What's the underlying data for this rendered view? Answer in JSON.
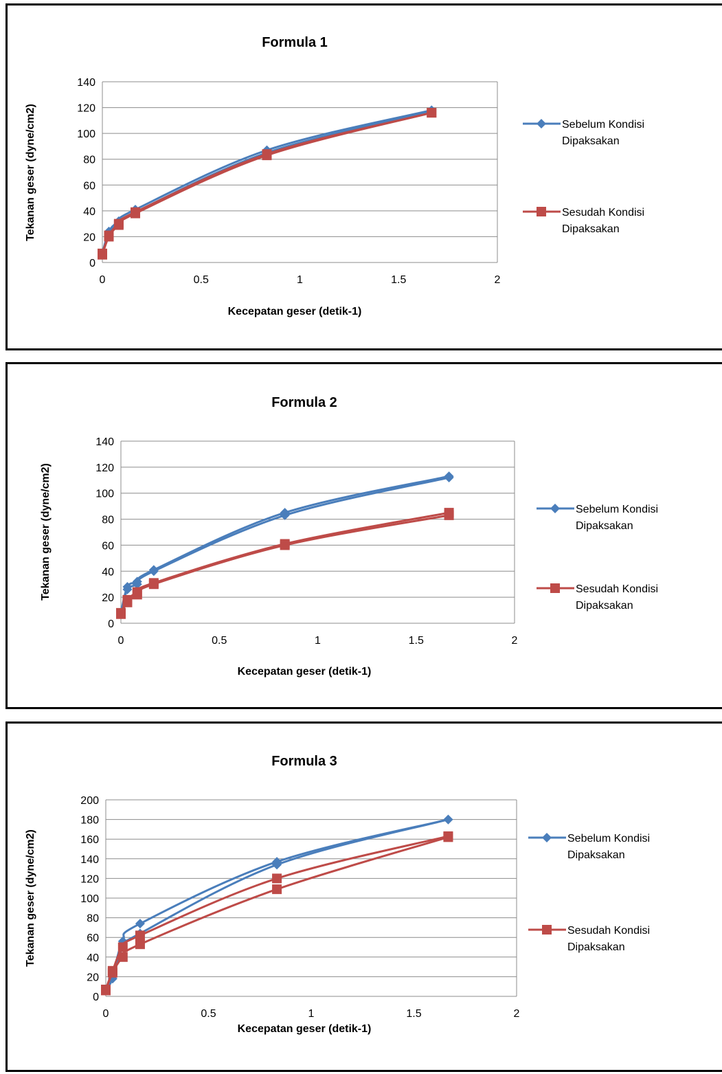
{
  "chart_data": [
    {
      "type": "line",
      "title": "Formula 1",
      "xlabel": "Kecepatan geser (detik-1)",
      "ylabel": "Tekanan geser (dyne/cm2)",
      "xlim": [
        0,
        2
      ],
      "ylim": [
        0,
        140
      ],
      "xticks": [
        "0",
        "0.5",
        "1",
        "1.5",
        "2"
      ],
      "yticks": [
        "0",
        "20",
        "40",
        "60",
        "80",
        "100",
        "120",
        "140"
      ],
      "grid": true,
      "legend_position": "right",
      "series": [
        {
          "name": "Sebelum Kondisi Dipaksakan",
          "color": "#4a7ebb",
          "marker": "diamond",
          "up": [
            [
              0.0,
              7
            ],
            [
              0.033,
              24
            ],
            [
              0.083,
              32
            ],
            [
              0.167,
              41
            ],
            [
              0.833,
              87
            ],
            [
              1.667,
              118
            ]
          ],
          "down": [
            [
              1.667,
              117
            ],
            [
              0.833,
              85
            ],
            [
              0.167,
              39
            ],
            [
              0.083,
              30
            ],
            [
              0.033,
              22
            ],
            [
              0.0,
              7
            ]
          ]
        },
        {
          "name": "Sesudah Kondisi Dipaksakan",
          "color": "#be4b48",
          "marker": "square",
          "up": [
            [
              0.0,
              7
            ],
            [
              0.033,
              21
            ],
            [
              0.083,
              30
            ],
            [
              0.167,
              39
            ],
            [
              0.833,
              84
            ],
            [
              1.667,
              116
            ]
          ],
          "down": [
            [
              1.667,
              116
            ],
            [
              0.833,
              83
            ],
            [
              0.167,
              38
            ],
            [
              0.083,
              29
            ],
            [
              0.033,
              20
            ],
            [
              0.0,
              6
            ]
          ]
        }
      ]
    },
    {
      "type": "line",
      "title": "Formula 2",
      "xlabel": "Kecepatan geser (detik-1)",
      "ylabel": "Tekanan geser (dyne/cm2)",
      "xlim": [
        0,
        2
      ],
      "ylim": [
        0,
        140
      ],
      "xticks": [
        "0",
        "0.5",
        "1",
        "1.5",
        "2"
      ],
      "yticks": [
        "0",
        "20",
        "40",
        "60",
        "80",
        "100",
        "120",
        "140"
      ],
      "grid": true,
      "legend_position": "right",
      "series": [
        {
          "name": "Sebelum Kondisi Dipaksakan",
          "color": "#4a7ebb",
          "marker": "diamond",
          "up": [
            [
              0.0,
              8
            ],
            [
              0.033,
              28
            ],
            [
              0.083,
              32
            ],
            [
              0.167,
              41
            ],
            [
              0.833,
              85
            ],
            [
              1.667,
              113
            ]
          ],
          "down": [
            [
              1.667,
              112
            ],
            [
              0.833,
              83
            ],
            [
              0.167,
              40
            ],
            [
              0.083,
              30
            ],
            [
              0.033,
              26
            ],
            [
              0.0,
              8
            ]
          ]
        },
        {
          "name": "Sesudah Kondisi Dipaksakan",
          "color": "#be4b48",
          "marker": "square",
          "up": [
            [
              0.0,
              8
            ],
            [
              0.033,
              18
            ],
            [
              0.083,
              24
            ],
            [
              0.167,
              31
            ],
            [
              0.833,
              61
            ],
            [
              1.667,
              85
            ]
          ],
          "down": [
            [
              1.667,
              83
            ],
            [
              0.833,
              60
            ],
            [
              0.167,
              30
            ],
            [
              0.083,
              22
            ],
            [
              0.033,
              16
            ],
            [
              0.0,
              7
            ]
          ]
        }
      ]
    },
    {
      "type": "line",
      "title": "Formula 3",
      "xlabel": "Kecepatan geser (detik-1)",
      "ylabel": "Tekanan geser (dyne/cm2)",
      "xlim": [
        0,
        2
      ],
      "ylim": [
        0,
        200
      ],
      "xticks": [
        "0",
        "0.5",
        "1",
        "1.5",
        "2"
      ],
      "yticks": [
        "0",
        "20",
        "40",
        "60",
        "80",
        "100",
        "120",
        "140",
        "160",
        "180",
        "200"
      ],
      "grid": true,
      "legend_position": "right",
      "series": [
        {
          "name": "Sebelum Kondisi Dipaksakan",
          "color": "#4a7ebb",
          "marker": "diamond",
          "up": [
            [
              0.0,
              7
            ],
            [
              0.033,
              22
            ],
            [
              0.083,
              56
            ],
            [
              0.167,
              74
            ],
            [
              0.833,
              137
            ],
            [
              1.667,
              180
            ]
          ],
          "down": [
            [
              1.667,
              180
            ],
            [
              0.833,
              134
            ],
            [
              0.167,
              64
            ],
            [
              0.083,
              50
            ],
            [
              0.033,
              18
            ],
            [
              0.0,
              6
            ]
          ]
        },
        {
          "name": "Sesudah  Kondisi Dipaksakan",
          "color": "#be4b48",
          "marker": "square",
          "up": [
            [
              0.0,
              7
            ],
            [
              0.033,
              26
            ],
            [
              0.083,
              50
            ],
            [
              0.167,
              62
            ],
            [
              0.833,
              120
            ],
            [
              1.667,
              163
            ]
          ],
          "down": [
            [
              1.667,
              162
            ],
            [
              0.833,
              109
            ],
            [
              0.167,
              53
            ],
            [
              0.083,
              40
            ],
            [
              0.033,
              24
            ],
            [
              0.0,
              6
            ]
          ]
        }
      ]
    }
  ]
}
